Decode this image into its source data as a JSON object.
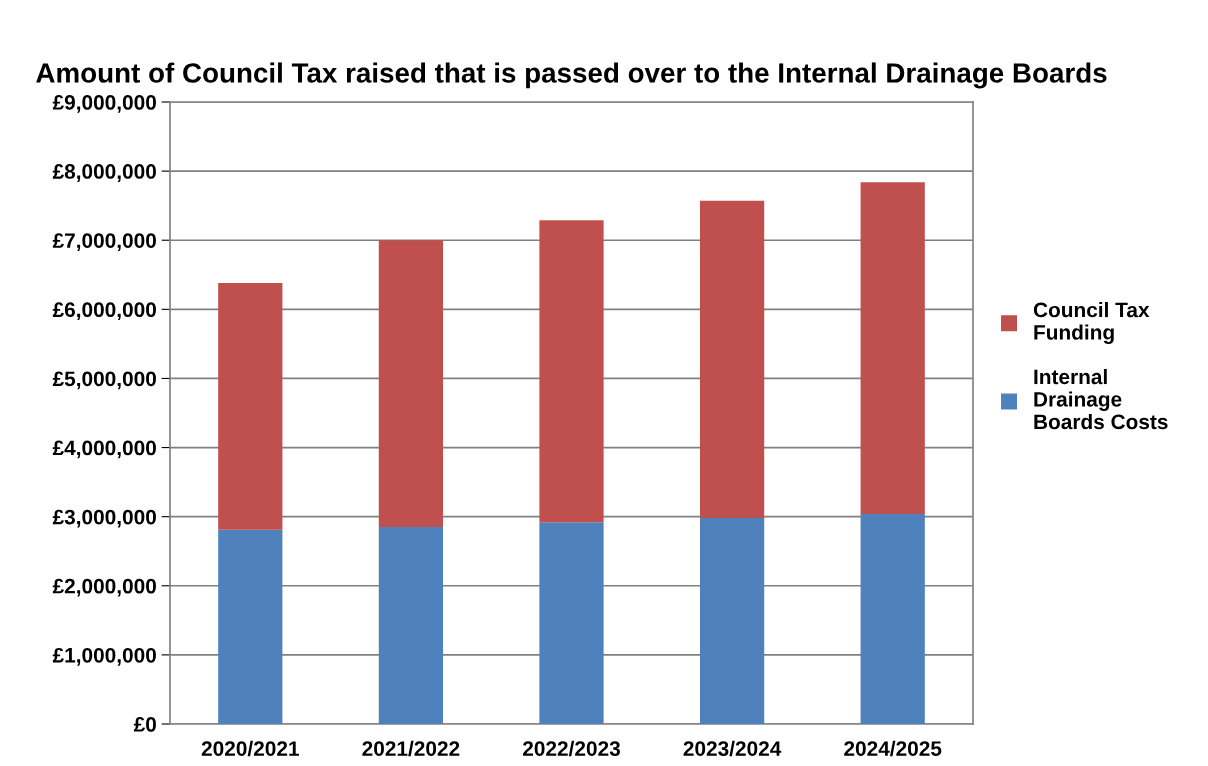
{
  "chart_data": {
    "type": "bar",
    "title": "Amount of Council Tax raised that is passed over to the Internal Drainage Boards",
    "categories": [
      "2020/2021",
      "2021/2022",
      "2022/2023",
      "2023/2024",
      "2024/2025"
    ],
    "stacked": true,
    "series": [
      {
        "name": "Internal Drainage Boards Costs",
        "color": "#4f81bd",
        "values": [
          2810000,
          2850000,
          2920000,
          2980000,
          3040000
        ]
      },
      {
        "name": "Council Tax Funding",
        "color": "#c0504d",
        "values": [
          3570000,
          4150000,
          4370000,
          4590000,
          4800000
        ]
      }
    ],
    "ylim": [
      0,
      9000000
    ],
    "yticks": [
      {
        "value": 0,
        "label": "£0"
      },
      {
        "value": 1000000,
        "label": "£1,000,000"
      },
      {
        "value": 2000000,
        "label": "£2,000,000"
      },
      {
        "value": 3000000,
        "label": "£3,000,000"
      },
      {
        "value": 4000000,
        "label": "£4,000,000"
      },
      {
        "value": 5000000,
        "label": "£5,000,000"
      },
      {
        "value": 6000000,
        "label": "£6,000,000"
      },
      {
        "value": 7000000,
        "label": "£7,000,000"
      },
      {
        "value": 8000000,
        "label": "£8,000,000"
      },
      {
        "value": 9000000,
        "label": "£9,000,000"
      }
    ],
    "grid": "y",
    "legend": "right"
  }
}
